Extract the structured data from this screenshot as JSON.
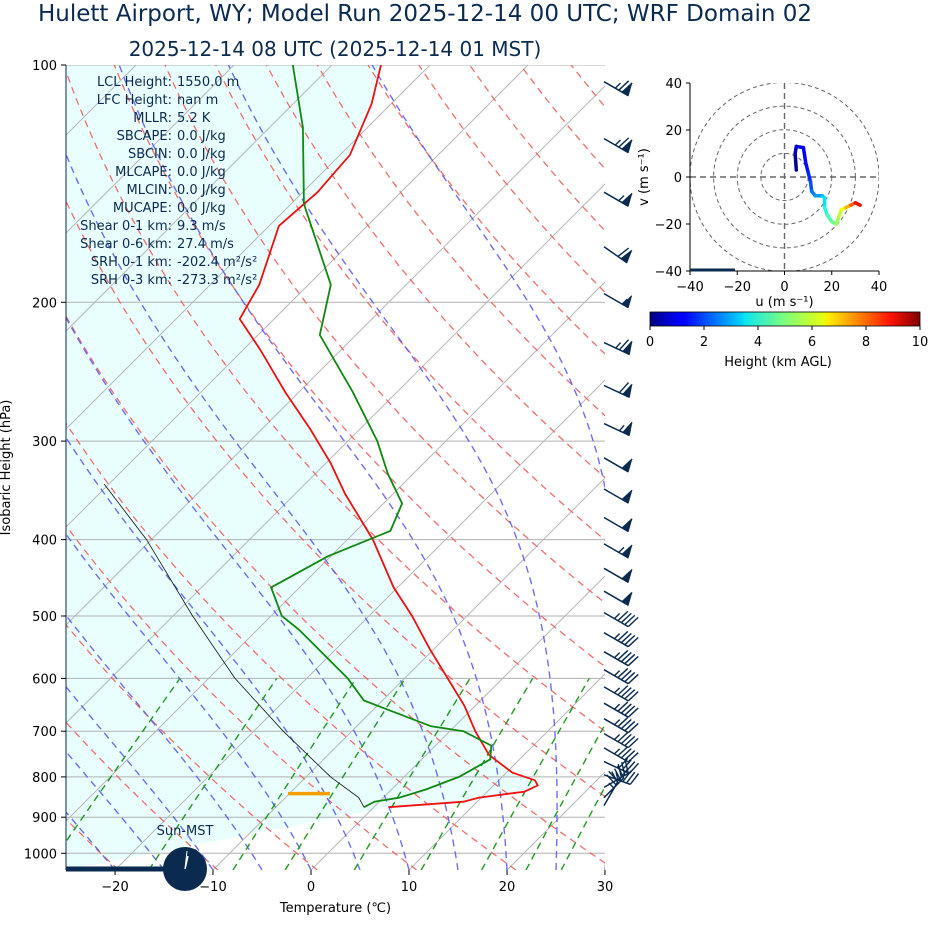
{
  "title": "Hulett Airport, WY; Model Run 2025-12-14 00 UTC; WRF Domain 02",
  "subtitle": "2025-12-14 08 UTC  (2025-12-14 01 MST)",
  "stats": [
    {
      "label": "LCL Height:",
      "value": "1550.0 m"
    },
    {
      "label": "LFC Height:",
      "value": "nan m"
    },
    {
      "label": "MLLR:",
      "value": "5.2 K"
    },
    {
      "label": "SBCAPE:",
      "value": "0.0 J/kg"
    },
    {
      "label": "SBCIN:",
      "value": "0.0 J/kg"
    },
    {
      "label": "MLCAPE:",
      "value": "0.0 J/kg"
    },
    {
      "label": "MLCIN:",
      "value": "0.0 J/kg"
    },
    {
      "label": "MUCAPE:",
      "value": "0.0 J/kg"
    },
    {
      "label": "Shear 0-1 km:",
      "value": "9.3 m/s"
    },
    {
      "label": "Shear 0-6 km:",
      "value": "27.4 m/s"
    },
    {
      "label": "SRH 0-1 km:",
      "value": "-202.4 m²/s²"
    },
    {
      "label": "SRH 0-3 km:",
      "value": "-273.3 m²/s²"
    }
  ],
  "clock_label": "Sun-MST",
  "colors": {
    "temperature": "#ee1111",
    "dewpoint": "#118811",
    "parcel": "#111111",
    "dry_adiabat": "#ee5555",
    "moist_adiabat": "#5555ee",
    "mixing_ratio": "#229922",
    "cape_fill": "#e8fffe",
    "barb": "#0a2a4f",
    "lcl_marker": "#f5a000"
  },
  "chart_data": [
    {
      "type": "line",
      "name": "skew-t",
      "xlabel": "Temperature (℃)",
      "ylabel": "Isobaric Height (hPa)",
      "xlim": [
        -25,
        30
      ],
      "ylim": [
        1050,
        100
      ],
      "y_scale": "log",
      "skew": "45 degrees",
      "grid": true,
      "x_ticks": [
        -20,
        -10,
        0,
        10,
        20,
        30
      ],
      "y_ticks": [
        100,
        200,
        300,
        400,
        500,
        600,
        700,
        800,
        900,
        1000
      ],
      "lcl_pressure": 840,
      "temperature": [
        {
          "p": 874,
          "t": 1.5
        },
        {
          "p": 860,
          "t": 8.6
        },
        {
          "p": 850,
          "t": 9.7
        },
        {
          "p": 835,
          "t": 13.8
        },
        {
          "p": 820,
          "t": 14.5
        },
        {
          "p": 808,
          "t": 13.7
        },
        {
          "p": 790,
          "t": 10.6
        },
        {
          "p": 750,
          "t": 6.4
        },
        {
          "p": 700,
          "t": 2.6
        },
        {
          "p": 650,
          "t": -1.1
        },
        {
          "p": 600,
          "t": -5.6
        },
        {
          "p": 550,
          "t": -10.5
        },
        {
          "p": 500,
          "t": -15.6
        },
        {
          "p": 460,
          "t": -20.4
        },
        {
          "p": 400,
          "t": -27.4
        },
        {
          "p": 350,
          "t": -34.9
        },
        {
          "p": 320,
          "t": -39.5
        },
        {
          "p": 290,
          "t": -45.0
        },
        {
          "p": 260,
          "t": -51.4
        },
        {
          "p": 230,
          "t": -58.2
        },
        {
          "p": 210,
          "t": -63.5
        },
        {
          "p": 190,
          "t": -65.0
        },
        {
          "p": 160,
          "t": -69.0
        },
        {
          "p": 145,
          "t": -68.5
        },
        {
          "p": 130,
          "t": -69.0
        },
        {
          "p": 112,
          "t": -72.0
        },
        {
          "p": 100,
          "t": -75.0
        }
      ],
      "dewpoint": [
        {
          "p": 874,
          "t": -1.0
        },
        {
          "p": 860,
          "t": -0.5
        },
        {
          "p": 850,
          "t": 1.6
        },
        {
          "p": 830,
          "t": 3.5
        },
        {
          "p": 800,
          "t": 5.6
        },
        {
          "p": 760,
          "t": 7.0
        },
        {
          "p": 730,
          "t": 5.7
        },
        {
          "p": 700,
          "t": 1.4
        },
        {
          "p": 690,
          "t": -2.4
        },
        {
          "p": 640,
          "t": -11.9
        },
        {
          "p": 600,
          "t": -15.8
        },
        {
          "p": 520,
          "t": -25.8
        },
        {
          "p": 500,
          "t": -28.9
        },
        {
          "p": 460,
          "t": -32.9
        },
        {
          "p": 420,
          "t": -30.3
        },
        {
          "p": 390,
          "t": -26.5
        },
        {
          "p": 360,
          "t": -28.1
        },
        {
          "p": 330,
          "t": -32.6
        },
        {
          "p": 300,
          "t": -37.0
        },
        {
          "p": 260,
          "t": -44.5
        },
        {
          "p": 220,
          "t": -53.7
        },
        {
          "p": 190,
          "t": -57.7
        },
        {
          "p": 150,
          "t": -68.7
        },
        {
          "p": 120,
          "t": -76.6
        },
        {
          "p": 100,
          "t": -84.0
        }
      ],
      "parcel": [
        {
          "p": 874,
          "t": -1.0
        },
        {
          "p": 850,
          "t": -2.5
        },
        {
          "p": 800,
          "t": -7.5
        },
        {
          "p": 700,
          "t": -17.0
        },
        {
          "p": 600,
          "t": -27.3
        },
        {
          "p": 500,
          "t": -38.0
        },
        {
          "p": 400,
          "t": -50.5
        },
        {
          "p": 340,
          "t": -60.5
        }
      ],
      "wind_barbs": [
        {
          "p": 105,
          "spd_kt": 75,
          "dir_deg": 300
        },
        {
          "p": 124,
          "spd_kt": 75,
          "dir_deg": 300
        },
        {
          "p": 145,
          "spd_kt": 65,
          "dir_deg": 300
        },
        {
          "p": 170,
          "spd_kt": 70,
          "dir_deg": 305
        },
        {
          "p": 195,
          "spd_kt": 55,
          "dir_deg": 300
        },
        {
          "p": 225,
          "spd_kt": 75,
          "dir_deg": 295
        },
        {
          "p": 255,
          "spd_kt": 70,
          "dir_deg": 295
        },
        {
          "p": 285,
          "spd_kt": 65,
          "dir_deg": 295
        },
        {
          "p": 315,
          "spd_kt": 60,
          "dir_deg": 300
        },
        {
          "p": 345,
          "spd_kt": 60,
          "dir_deg": 300
        },
        {
          "p": 375,
          "spd_kt": 60,
          "dir_deg": 300
        },
        {
          "p": 405,
          "spd_kt": 65,
          "dir_deg": 300
        },
        {
          "p": 435,
          "spd_kt": 60,
          "dir_deg": 300
        },
        {
          "p": 465,
          "spd_kt": 60,
          "dir_deg": 300
        },
        {
          "p": 495,
          "spd_kt": 45,
          "dir_deg": 300
        },
        {
          "p": 525,
          "spd_kt": 45,
          "dir_deg": 300
        },
        {
          "p": 555,
          "spd_kt": 45,
          "dir_deg": 300
        },
        {
          "p": 585,
          "spd_kt": 45,
          "dir_deg": 300
        },
        {
          "p": 615,
          "spd_kt": 45,
          "dir_deg": 300
        },
        {
          "p": 645,
          "spd_kt": 45,
          "dir_deg": 300
        },
        {
          "p": 675,
          "spd_kt": 45,
          "dir_deg": 300
        },
        {
          "p": 705,
          "spd_kt": 45,
          "dir_deg": 300
        },
        {
          "p": 735,
          "spd_kt": 45,
          "dir_deg": 300
        },
        {
          "p": 765,
          "spd_kt": 40,
          "dir_deg": 295
        },
        {
          "p": 795,
          "spd_kt": 40,
          "dir_deg": 290
        },
        {
          "p": 825,
          "spd_kt": 35,
          "dir_deg": 240
        },
        {
          "p": 850,
          "spd_kt": 30,
          "dir_deg": 225
        },
        {
          "p": 870,
          "spd_kt": 25,
          "dir_deg": 210
        }
      ]
    },
    {
      "type": "line",
      "name": "hodograph",
      "xlabel": "u (m s⁻¹)",
      "ylabel": "v (m s⁻¹)",
      "xlim": [
        -40,
        40
      ],
      "ylim": [
        -40,
        40
      ],
      "x_ticks": [
        -40,
        -20,
        0,
        20,
        40
      ],
      "y_ticks": [
        -40,
        -20,
        0,
        20,
        40
      ],
      "rings": [
        10,
        20,
        30,
        40
      ],
      "color_by": "height",
      "points": [
        {
          "u": 5.0,
          "v": 3.0,
          "h": 0.0
        },
        {
          "u": 4.5,
          "v": 10.0,
          "h": 0.3
        },
        {
          "u": 5.0,
          "v": 13.0,
          "h": 0.6
        },
        {
          "u": 8.0,
          "v": 12.5,
          "h": 0.9
        },
        {
          "u": 9.0,
          "v": 6.0,
          "h": 1.2
        },
        {
          "u": 10.0,
          "v": 2.0,
          "h": 1.5
        },
        {
          "u": 11.0,
          "v": -2.0,
          "h": 1.8
        },
        {
          "u": 11.5,
          "v": -6.0,
          "h": 2.2
        },
        {
          "u": 13.0,
          "v": -8.0,
          "h": 2.6
        },
        {
          "u": 16.0,
          "v": -8.0,
          "h": 3.0
        },
        {
          "u": 17.0,
          "v": -9.0,
          "h": 3.3
        },
        {
          "u": 17.0,
          "v": -13.0,
          "h": 3.7
        },
        {
          "u": 18.0,
          "v": -16.0,
          "h": 4.1
        },
        {
          "u": 20.0,
          "v": -19.0,
          "h": 4.6
        },
        {
          "u": 22.0,
          "v": -20.0,
          "h": 5.1
        },
        {
          "u": 23.0,
          "v": -17.0,
          "h": 5.6
        },
        {
          "u": 24.0,
          "v": -14.0,
          "h": 6.1
        },
        {
          "u": 26.0,
          "v": -13.0,
          "h": 6.8
        },
        {
          "u": 28.0,
          "v": -12.0,
          "h": 7.6
        },
        {
          "u": 30.0,
          "v": -11.0,
          "h": 8.5
        },
        {
          "u": 32.0,
          "v": -12.0,
          "h": 9.5
        }
      ],
      "colorbar": {
        "label": "Height (km AGL)",
        "ticks": [
          0,
          2,
          4,
          6,
          8,
          10
        ],
        "range": [
          0,
          10
        ]
      }
    }
  ]
}
